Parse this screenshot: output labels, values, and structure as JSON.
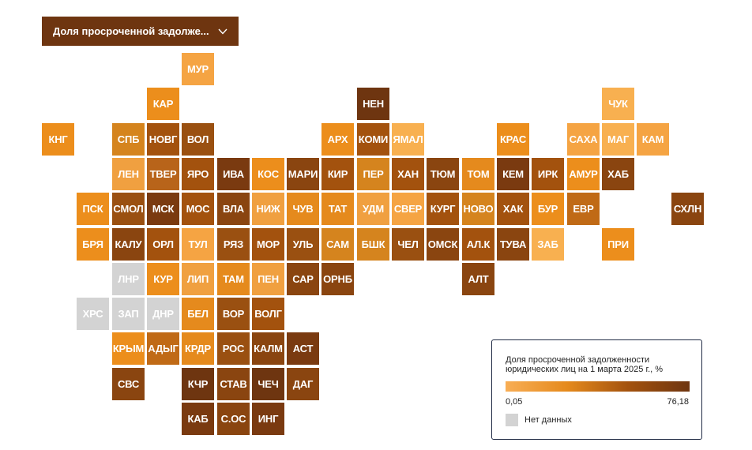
{
  "dropdown": {
    "label": "Доля просроченной задолже...",
    "icon": "chevron-down-icon"
  },
  "legend": {
    "title": "Доля просроченной задолженности юридических лиц на 1 марта 2025  г., %",
    "min": "0,05",
    "max": "76,18",
    "no_data_label": "Нет данных",
    "no_data_color": "#d3d3d3",
    "scale_colors": [
      "#f8ae55",
      "#e58a1d",
      "#a3520e",
      "#6e3510"
    ]
  },
  "regions": [
    {
      "label": "МУР",
      "col": 5,
      "row": 0,
      "color": "#f5a443"
    },
    {
      "label": "КАР",
      "col": 4,
      "row": 1,
      "color": "#ec8e1c"
    },
    {
      "label": "НЕН",
      "col": 10,
      "row": 1,
      "color": "#6e3510"
    },
    {
      "label": "ЧУК",
      "col": 17,
      "row": 1,
      "color": "#f8b050"
    },
    {
      "label": "КНГ",
      "col": 1,
      "row": 2,
      "color": "#ec8e1c"
    },
    {
      "label": "СПБ",
      "col": 3,
      "row": 2,
      "color": "#d5841e"
    },
    {
      "label": "НОВГ",
      "col": 4,
      "row": 2,
      "color": "#a3520e"
    },
    {
      "label": "ВОЛ",
      "col": 5,
      "row": 2,
      "color": "#9a5011"
    },
    {
      "label": "АРХ",
      "col": 9,
      "row": 2,
      "color": "#ec8e1c"
    },
    {
      "label": "КОМИ",
      "col": 10,
      "row": 2,
      "color": "#a3520e"
    },
    {
      "label": "ЯМАЛ",
      "col": 11,
      "row": 2,
      "color": "#f8b050"
    },
    {
      "label": "КРАС",
      "col": 14,
      "row": 2,
      "color": "#ec8e1c"
    },
    {
      "label": "САХА",
      "col": 16,
      "row": 2,
      "color": "#f5a443"
    },
    {
      "label": "МАГ",
      "col": 17,
      "row": 2,
      "color": "#f8b050"
    },
    {
      "label": "КАМ",
      "col": 18,
      "row": 2,
      "color": "#f5a443"
    },
    {
      "label": "ЛЕН",
      "col": 3,
      "row": 3,
      "color": "#f0a040"
    },
    {
      "label": "ТВЕР",
      "col": 4,
      "row": 3,
      "color": "#b8641a"
    },
    {
      "label": "ЯРО",
      "col": 5,
      "row": 3,
      "color": "#a3520e"
    },
    {
      "label": "ИВА",
      "col": 6,
      "row": 3,
      "color": "#7a3a10"
    },
    {
      "label": "КОС",
      "col": 7,
      "row": 3,
      "color": "#ec8e1c"
    },
    {
      "label": "МАРИ",
      "col": 8,
      "row": 3,
      "color": "#8a4510"
    },
    {
      "label": "КИР",
      "col": 9,
      "row": 3,
      "color": "#a3520e"
    },
    {
      "label": "ПЕР",
      "col": 10,
      "row": 3,
      "color": "#d5841e"
    },
    {
      "label": "ХАН",
      "col": 11,
      "row": 3,
      "color": "#a3520e"
    },
    {
      "label": "ТЮМ",
      "col": 12,
      "row": 3,
      "color": "#8a4510"
    },
    {
      "label": "ТОМ",
      "col": 13,
      "row": 3,
      "color": "#e58a1d"
    },
    {
      "label": "КЕМ",
      "col": 14,
      "row": 3,
      "color": "#7a3a10"
    },
    {
      "label": "ИРК",
      "col": 15,
      "row": 3,
      "color": "#a3520e"
    },
    {
      "label": "АМУР",
      "col": 16,
      "row": 3,
      "color": "#ec8e1c"
    },
    {
      "label": "ХАБ",
      "col": 17,
      "row": 3,
      "color": "#8a4510"
    },
    {
      "label": "ПСК",
      "col": 2,
      "row": 4,
      "color": "#ec8e1c"
    },
    {
      "label": "СМОЛ",
      "col": 3,
      "row": 4,
      "color": "#9a5011"
    },
    {
      "label": "МСК",
      "col": 4,
      "row": 4,
      "color": "#7a3a10"
    },
    {
      "label": "МОС",
      "col": 5,
      "row": 4,
      "color": "#a3520e"
    },
    {
      "label": "ВЛА",
      "col": 6,
      "row": 4,
      "color": "#8a4510"
    },
    {
      "label": "НИЖ",
      "col": 7,
      "row": 4,
      "color": "#f0a040"
    },
    {
      "label": "ЧУВ",
      "col": 8,
      "row": 4,
      "color": "#e58a1d"
    },
    {
      "label": "ТАТ",
      "col": 9,
      "row": 4,
      "color": "#e58a1d"
    },
    {
      "label": "УДМ",
      "col": 10,
      "row": 4,
      "color": "#f0a040"
    },
    {
      "label": "СВЕР",
      "col": 11,
      "row": 4,
      "color": "#f5a443"
    },
    {
      "label": "КУРГ",
      "col": 12,
      "row": 4,
      "color": "#a3520e"
    },
    {
      "label": "НОВО",
      "col": 13,
      "row": 4,
      "color": "#d5841e"
    },
    {
      "label": "ХАК",
      "col": 14,
      "row": 4,
      "color": "#a3520e"
    },
    {
      "label": "БУР",
      "col": 15,
      "row": 4,
      "color": "#ec8e1c"
    },
    {
      "label": "ЕВР",
      "col": 16,
      "row": 4,
      "color": "#c06a16"
    },
    {
      "label": "СХЛН",
      "col": 19,
      "row": 4,
      "color": "#8a4510"
    },
    {
      "label": "БРЯ",
      "col": 2,
      "row": 5,
      "color": "#ec8e1c"
    },
    {
      "label": "КАЛУ",
      "col": 3,
      "row": 5,
      "color": "#8a4510"
    },
    {
      "label": "ОРЛ",
      "col": 4,
      "row": 5,
      "color": "#a3520e"
    },
    {
      "label": "ТУЛ",
      "col": 5,
      "row": 5,
      "color": "#f5a443"
    },
    {
      "label": "РЯЗ",
      "col": 6,
      "row": 5,
      "color": "#9a5011"
    },
    {
      "label": "МОР",
      "col": 7,
      "row": 5,
      "color": "#a3520e"
    },
    {
      "label": "УЛЬ",
      "col": 8,
      "row": 5,
      "color": "#9a5011"
    },
    {
      "label": "САМ",
      "col": 9,
      "row": 5,
      "color": "#d5841e"
    },
    {
      "label": "БШК",
      "col": 10,
      "row": 5,
      "color": "#d5841e"
    },
    {
      "label": "ЧЕЛ",
      "col": 11,
      "row": 5,
      "color": "#9a5011"
    },
    {
      "label": "ОМСК",
      "col": 12,
      "row": 5,
      "color": "#8a4510"
    },
    {
      "label": "АЛ.К",
      "col": 13,
      "row": 5,
      "color": "#a3520e"
    },
    {
      "label": "ТУВА",
      "col": 14,
      "row": 5,
      "color": "#8a4510"
    },
    {
      "label": "ЗАБ",
      "col": 15,
      "row": 5,
      "color": "#f8b050"
    },
    {
      "label": "ПРИ",
      "col": 17,
      "row": 5,
      "color": "#ec8e1c"
    },
    {
      "label": "ЛНР",
      "col": 3,
      "row": 6,
      "color": "#d3d3d3"
    },
    {
      "label": "КУР",
      "col": 4,
      "row": 6,
      "color": "#ec8e1c"
    },
    {
      "label": "ЛИП",
      "col": 5,
      "row": 6,
      "color": "#f0a040"
    },
    {
      "label": "ТАМ",
      "col": 6,
      "row": 6,
      "color": "#e58a1d"
    },
    {
      "label": "ПЕН",
      "col": 7,
      "row": 6,
      "color": "#f0a040"
    },
    {
      "label": "САР",
      "col": 8,
      "row": 6,
      "color": "#8a4510"
    },
    {
      "label": "ОРНБ",
      "col": 9,
      "row": 6,
      "color": "#8a4510"
    },
    {
      "label": "АЛТ",
      "col": 13,
      "row": 6,
      "color": "#8a4510"
    },
    {
      "label": "ХРС",
      "col": 2,
      "row": 7,
      "color": "#d3d3d3"
    },
    {
      "label": "ЗАП",
      "col": 3,
      "row": 7,
      "color": "#d3d3d3"
    },
    {
      "label": "ДНР",
      "col": 4,
      "row": 7,
      "color": "#d3d3d3"
    },
    {
      "label": "БЕЛ",
      "col": 5,
      "row": 7,
      "color": "#e58a1d"
    },
    {
      "label": "ВОР",
      "col": 6,
      "row": 7,
      "color": "#9a5011"
    },
    {
      "label": "ВОЛГ",
      "col": 7,
      "row": 7,
      "color": "#a3520e"
    },
    {
      "label": "КРЫМ",
      "col": 3,
      "row": 8,
      "color": "#ec8e1c"
    },
    {
      "label": "АДЫГ",
      "col": 4,
      "row": 8,
      "color": "#c06a16"
    },
    {
      "label": "КРДР",
      "col": 5,
      "row": 8,
      "color": "#e58a1d"
    },
    {
      "label": "РОС",
      "col": 6,
      "row": 8,
      "color": "#9a5011"
    },
    {
      "label": "КАЛМ",
      "col": 7,
      "row": 8,
      "color": "#8a4510"
    },
    {
      "label": "АСТ",
      "col": 8,
      "row": 8,
      "color": "#7a3a10"
    },
    {
      "label": "СВС",
      "col": 3,
      "row": 9,
      "color": "#8a4510"
    },
    {
      "label": "КЧР",
      "col": 5,
      "row": 9,
      "color": "#6e3510"
    },
    {
      "label": "СТАВ",
      "col": 6,
      "row": 9,
      "color": "#8a4510"
    },
    {
      "label": "ЧЕЧ",
      "col": 7,
      "row": 9,
      "color": "#6e3510"
    },
    {
      "label": "ДАГ",
      "col": 8,
      "row": 9,
      "color": "#8a4510"
    },
    {
      "label": "КАБ",
      "col": 5,
      "row": 10,
      "color": "#7a3a10"
    },
    {
      "label": "С.ОС",
      "col": 6,
      "row": 10,
      "color": "#8a4510"
    },
    {
      "label": "ИНГ",
      "col": 7,
      "row": 10,
      "color": "#7a3a10"
    }
  ]
}
